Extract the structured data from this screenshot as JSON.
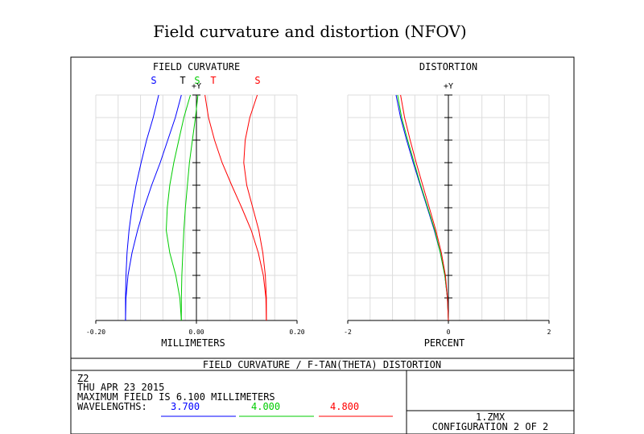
{
  "page": {
    "title": "Field curvature and distortion (NFOV)"
  },
  "chart_data": [
    {
      "type": "line",
      "title": "FIELD CURVATURE",
      "xlabel": "MILLIMETERS",
      "ylabel": "+Y",
      "xlim": [
        -0.2,
        0.2
      ],
      "ylim": [
        0,
        1
      ],
      "x_ticks": [
        "-0.20",
        "0.00",
        "0.20"
      ],
      "grid": true,
      "legend_labels": [
        {
          "text": "S",
          "color": "#0000ff"
        },
        {
          "text": "T",
          "color": "#000000"
        },
        {
          "text": "S",
          "color": "#00cc00"
        },
        {
          "text": "T",
          "color": "#ff0000"
        },
        {
          "text": "S",
          "color": "#ff0000"
        }
      ],
      "series": [
        {
          "name": "S",
          "color": "#0000ff",
          "x": [
            -0.141,
            -0.141,
            -0.14,
            -0.138,
            -0.134,
            -0.128,
            -0.12,
            -0.11,
            -0.099,
            -0.086,
            -0.075
          ],
          "y": [
            0,
            0.1,
            0.2,
            0.3,
            0.4,
            0.5,
            0.6,
            0.7,
            0.8,
            0.9,
            1.0
          ]
        },
        {
          "name": "T",
          "color": "#0000ff",
          "x": [
            -0.141,
            -0.14,
            -0.136,
            -0.128,
            -0.117,
            -0.104,
            -0.089,
            -0.072,
            -0.057,
            -0.042,
            -0.03
          ],
          "y": [
            0,
            0.1,
            0.2,
            0.3,
            0.4,
            0.5,
            0.6,
            0.7,
            0.8,
            0.9,
            1.0
          ]
        },
        {
          "name": "S",
          "color": "#00cc00",
          "x": [
            -0.03,
            -0.03,
            -0.029,
            -0.027,
            -0.025,
            -0.022,
            -0.018,
            -0.014,
            -0.008,
            -0.002,
            0.003
          ],
          "y": [
            0,
            0.1,
            0.2,
            0.3,
            0.4,
            0.5,
            0.6,
            0.7,
            0.8,
            0.9,
            1.0
          ]
        },
        {
          "name": "T",
          "color": "#00cc00",
          "x": [
            -0.03,
            -0.033,
            -0.041,
            -0.053,
            -0.06,
            -0.058,
            -0.053,
            -0.045,
            -0.035,
            -0.025,
            -0.012
          ],
          "y": [
            0,
            0.1,
            0.2,
            0.3,
            0.4,
            0.5,
            0.6,
            0.7,
            0.8,
            0.9,
            1.0
          ]
        },
        {
          "name": "S",
          "color": "#ff0000",
          "x": [
            0.139,
            0.139,
            0.137,
            0.132,
            0.124,
            0.112,
            0.1,
            0.094,
            0.097,
            0.106,
            0.121
          ],
          "y": [
            0,
            0.1,
            0.2,
            0.3,
            0.4,
            0.5,
            0.6,
            0.7,
            0.8,
            0.9,
            1.0
          ]
        },
        {
          "name": "T",
          "color": "#ff0000",
          "x": [
            0.139,
            0.138,
            0.133,
            0.123,
            0.109,
            0.09,
            0.07,
            0.051,
            0.036,
            0.024,
            0.017
          ],
          "y": [
            0,
            0.1,
            0.2,
            0.3,
            0.4,
            0.5,
            0.6,
            0.7,
            0.8,
            0.9,
            1.0
          ]
        }
      ]
    },
    {
      "type": "line",
      "title": "DISTORTION",
      "xlabel": "PERCENT",
      "ylabel": "+Y",
      "xlim": [
        -2,
        2
      ],
      "ylim": [
        0,
        1
      ],
      "x_ticks": [
        "-2",
        "0",
        "2"
      ],
      "grid": true,
      "series": [
        {
          "name": "3.700",
          "color": "#0000ff",
          "x": [
            0,
            -0.02,
            -0.07,
            -0.16,
            -0.28,
            -0.42,
            -0.56,
            -0.7,
            -0.83,
            -0.95,
            -1.04
          ],
          "y": [
            0,
            0.1,
            0.2,
            0.3,
            0.4,
            0.5,
            0.6,
            0.7,
            0.8,
            0.9,
            1.0
          ]
        },
        {
          "name": "4.000",
          "color": "#00cc00",
          "x": [
            0,
            -0.02,
            -0.07,
            -0.16,
            -0.27,
            -0.41,
            -0.55,
            -0.68,
            -0.81,
            -0.93,
            -1.01
          ],
          "y": [
            0,
            0.1,
            0.2,
            0.3,
            0.4,
            0.5,
            0.6,
            0.7,
            0.8,
            0.9,
            1.0
          ]
        },
        {
          "name": "4.800",
          "color": "#ff0000",
          "x": [
            0,
            -0.02,
            -0.06,
            -0.14,
            -0.25,
            -0.38,
            -0.51,
            -0.64,
            -0.76,
            -0.87,
            -0.95
          ],
          "y": [
            0,
            0.1,
            0.2,
            0.3,
            0.4,
            0.5,
            0.6,
            0.7,
            0.8,
            0.9,
            1.0
          ]
        }
      ]
    }
  ],
  "footer": {
    "banner": "FIELD CURVATURE / F-TAN(THETA) DISTORTION",
    "line1": "Z2",
    "line2": "THU APR 23 2015",
    "line3": "MAXIMUM FIELD IS 6.100 MILLIMETERS",
    "wavelengths_label": "WAVELENGTHS:",
    "wavelengths": [
      {
        "value": "3.700",
        "color": "#0000ff"
      },
      {
        "value": "4.000",
        "color": "#00cc00"
      },
      {
        "value": "4.800",
        "color": "#ff0000"
      }
    ],
    "file": "1.ZMX",
    "config": "CONFIGURATION 2 OF 2"
  }
}
